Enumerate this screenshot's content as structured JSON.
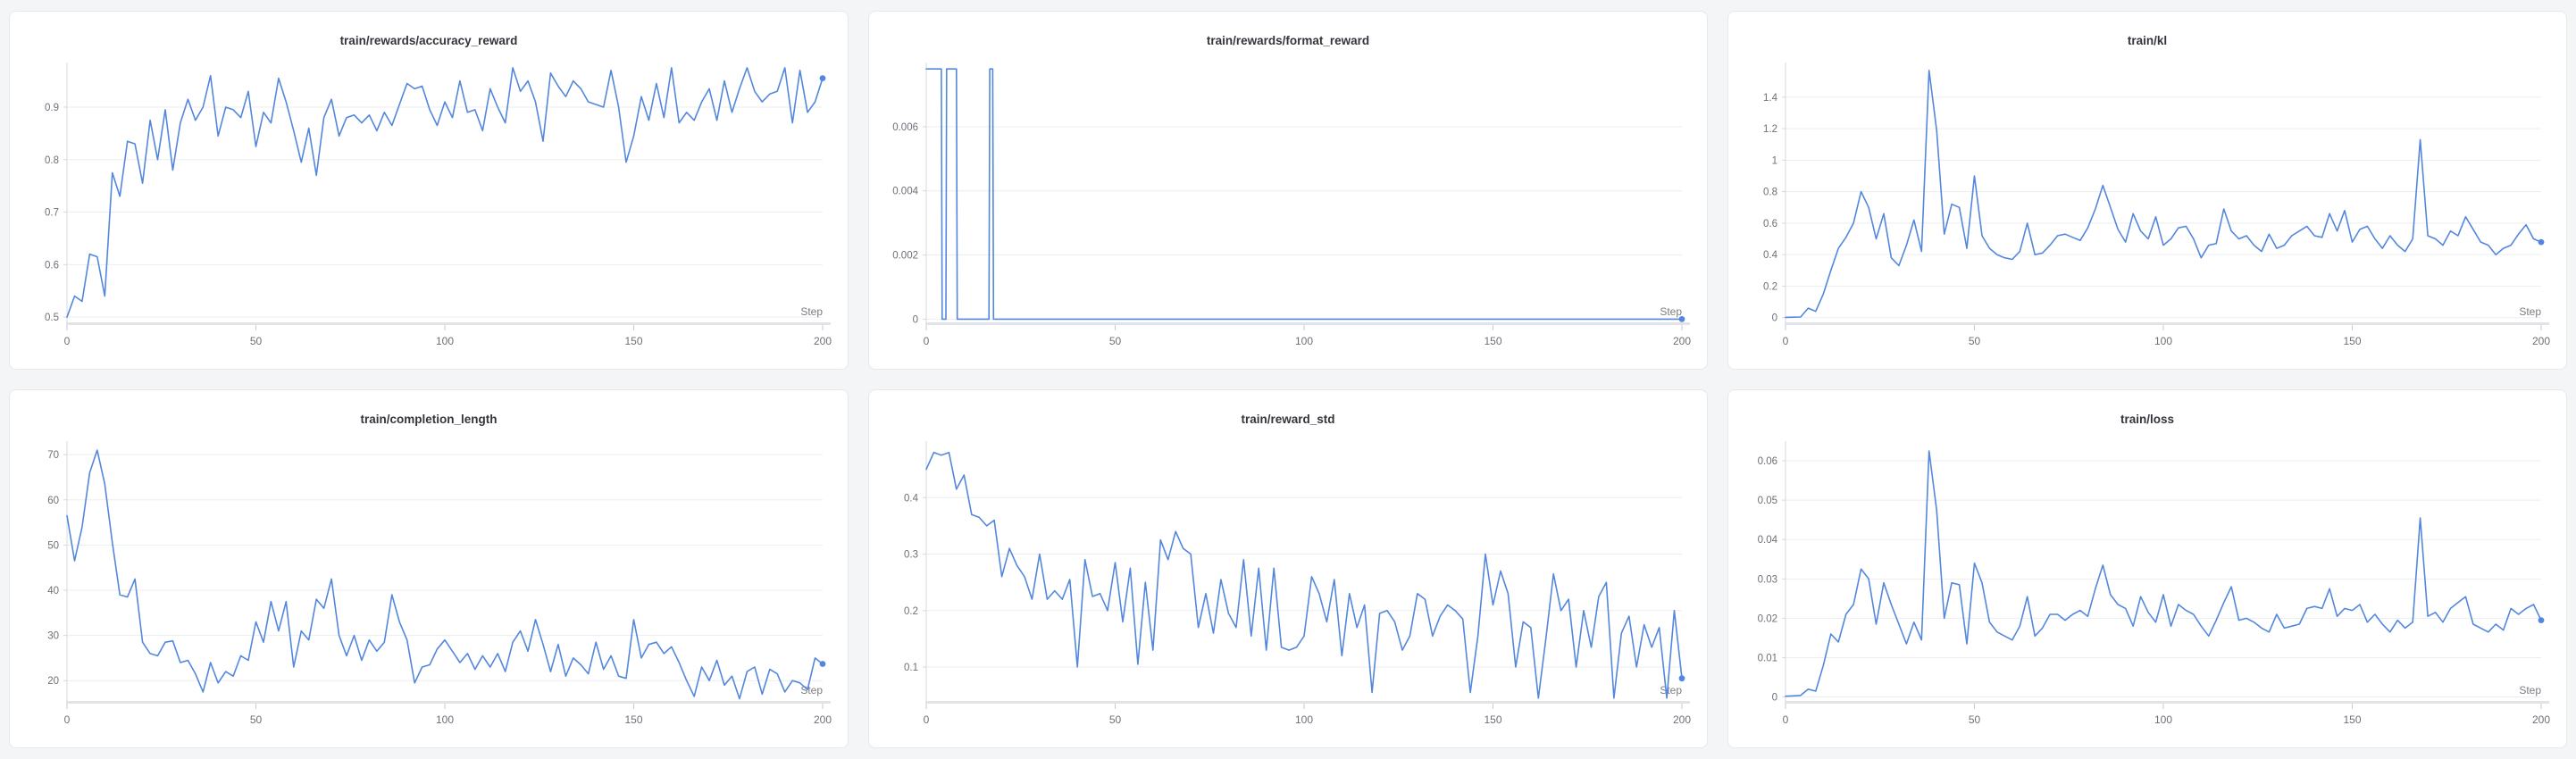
{
  "page": {
    "background": "#f4f5f6",
    "panel_background": "#ffffff",
    "panel_border": "#e7e8ea"
  },
  "theme": {
    "line_color": "#5387dd",
    "grid_color": "#ecedef",
    "axis_color": "#d7d8db",
    "axis_band_color": "#e2e3e6",
    "tick_color": "#c9cacd",
    "tick_label_color": "#6e6f77",
    "step_label_color": "#7c7d84",
    "title_color": "#34353c"
  },
  "chart_data": [
    {
      "type": "line",
      "title": "train/rewards/accuracy_reward",
      "xlabel": "Step",
      "x_start": 0,
      "x_step": 2,
      "xlim": [
        0,
        200
      ],
      "ylim": [
        0.49,
        0.985
      ],
      "x_ticks": [
        0,
        50,
        100,
        150,
        200
      ],
      "y_ticks": [
        0.5,
        0.6,
        0.7,
        0.8,
        0.9
      ],
      "y_tick_labels": [
        "0.5",
        "0.6",
        "0.7",
        "0.8",
        "0.9"
      ],
      "grid": "horizontal",
      "legend": "none",
      "end_dot": true,
      "y": [
        0.5,
        0.54,
        0.53,
        0.62,
        0.615,
        0.54,
        0.775,
        0.73,
        0.835,
        0.83,
        0.755,
        0.875,
        0.8,
        0.895,
        0.78,
        0.87,
        0.915,
        0.875,
        0.9,
        0.96,
        0.845,
        0.9,
        0.895,
        0.88,
        0.93,
        0.825,
        0.89,
        0.87,
        0.955,
        0.91,
        0.855,
        0.795,
        0.86,
        0.77,
        0.88,
        0.915,
        0.845,
        0.88,
        0.885,
        0.87,
        0.885,
        0.855,
        0.89,
        0.865,
        0.905,
        0.945,
        0.935,
        0.94,
        0.895,
        0.865,
        0.91,
        0.88,
        0.95,
        0.89,
        0.895,
        0.855,
        0.935,
        0.9,
        0.87,
        0.975,
        0.93,
        0.95,
        0.91,
        0.835,
        0.965,
        0.94,
        0.92,
        0.95,
        0.935,
        0.91,
        0.905,
        0.9,
        0.97,
        0.9,
        0.795,
        0.845,
        0.92,
        0.875,
        0.945,
        0.88,
        0.975,
        0.87,
        0.89,
        0.875,
        0.91,
        0.935,
        0.875,
        0.95,
        0.89,
        0.935,
        0.975,
        0.93,
        0.91,
        0.925,
        0.93,
        0.975,
        0.87,
        0.97,
        0.89,
        0.91,
        0.955
      ]
    },
    {
      "type": "line",
      "title": "train/rewards/format_reward",
      "xlabel": "Step",
      "xlim": [
        0,
        200
      ],
      "ylim": [
        -0.0001,
        0.008
      ],
      "x_ticks": [
        0,
        50,
        100,
        150,
        200
      ],
      "y_ticks": [
        0,
        0.002,
        0.004,
        0.006
      ],
      "y_tick_labels": [
        "0",
        "0.002",
        "0.004",
        "0.006"
      ],
      "grid": "horizontal",
      "legend": "none",
      "end_dot": true,
      "x": [
        0,
        4,
        4.2,
        5.2,
        5.4,
        8,
        8.2,
        16.6,
        16.8,
        17.6,
        17.8,
        200
      ],
      "y": [
        0.0078,
        0.0078,
        0,
        0,
        0.0078,
        0.0078,
        0,
        0,
        0.0078,
        0.0078,
        0,
        0
      ]
    },
    {
      "type": "line",
      "title": "train/kl",
      "xlabel": "Step",
      "x_start": 0,
      "x_step": 2,
      "xlim": [
        0,
        200
      ],
      "ylim": [
        -0.03,
        1.62
      ],
      "x_ticks": [
        0,
        50,
        100,
        150,
        200
      ],
      "y_ticks": [
        0,
        0.2,
        0.4,
        0.6,
        0.8,
        1,
        1.2,
        1.4
      ],
      "y_tick_labels": [
        "0",
        "0.2",
        "0.4",
        "0.6",
        "0.8",
        "1",
        "1.2",
        "1.4"
      ],
      "grid": "horizontal",
      "legend": "none",
      "end_dot": true,
      "y": [
        0.002,
        0.003,
        0.004,
        0.06,
        0.04,
        0.15,
        0.3,
        0.44,
        0.51,
        0.6,
        0.8,
        0.7,
        0.5,
        0.66,
        0.38,
        0.33,
        0.46,
        0.62,
        0.42,
        1.57,
        1.19,
        0.53,
        0.72,
        0.7,
        0.44,
        0.9,
        0.52,
        0.44,
        0.4,
        0.38,
        0.37,
        0.42,
        0.6,
        0.4,
        0.41,
        0.46,
        0.52,
        0.53,
        0.51,
        0.49,
        0.57,
        0.69,
        0.84,
        0.7,
        0.56,
        0.48,
        0.66,
        0.55,
        0.5,
        0.64,
        0.46,
        0.5,
        0.57,
        0.58,
        0.5,
        0.38,
        0.46,
        0.47,
        0.69,
        0.55,
        0.5,
        0.52,
        0.46,
        0.42,
        0.53,
        0.44,
        0.46,
        0.52,
        0.55,
        0.58,
        0.52,
        0.51,
        0.66,
        0.55,
        0.68,
        0.48,
        0.56,
        0.58,
        0.5,
        0.44,
        0.52,
        0.46,
        0.42,
        0.5,
        1.13,
        0.52,
        0.5,
        0.46,
        0.55,
        0.52,
        0.64,
        0.56,
        0.48,
        0.46,
        0.4,
        0.44,
        0.46,
        0.53,
        0.59,
        0.5,
        0.48
      ]
    },
    {
      "type": "line",
      "title": "train/completion_length",
      "xlabel": "Step",
      "x_start": 0,
      "x_step": 2,
      "xlim": [
        0,
        200
      ],
      "ylim": [
        15.5,
        73
      ],
      "x_ticks": [
        0,
        50,
        100,
        150,
        200
      ],
      "y_ticks": [
        20,
        30,
        40,
        50,
        60,
        70
      ],
      "y_tick_labels": [
        "20",
        "30",
        "40",
        "50",
        "60",
        "70"
      ],
      "grid": "horizontal",
      "legend": "none",
      "end_dot": true,
      "y": [
        56.5,
        46.5,
        54,
        66,
        71,
        63.5,
        50.5,
        39,
        38.5,
        42.5,
        28.5,
        26,
        25.5,
        28.5,
        28.8,
        24,
        24.5,
        21.5,
        17.5,
        24,
        19.5,
        22,
        21,
        25.5,
        24.5,
        33,
        28.5,
        37.5,
        31,
        37.5,
        23,
        31,
        29,
        38,
        36,
        42.5,
        30,
        25.5,
        30,
        24.5,
        29,
        26.5,
        28.5,
        39,
        33,
        29,
        19.5,
        23,
        23.5,
        27,
        29,
        26.5,
        24,
        26,
        22.5,
        25.5,
        23,
        26,
        22,
        28.5,
        31,
        26.5,
        33.5,
        28,
        22,
        28,
        21,
        25,
        23.5,
        21.5,
        28.5,
        22.5,
        25.5,
        21,
        20.5,
        33.5,
        25,
        28,
        28.5,
        26,
        27.5,
        24,
        20,
        16.5,
        23,
        20,
        24.5,
        19,
        21,
        16,
        22,
        23,
        17,
        22.5,
        21.5,
        17.5,
        20,
        19.5,
        18,
        25,
        23.7
      ]
    },
    {
      "type": "line",
      "title": "train/reward_std",
      "xlabel": "Step",
      "x_start": 0,
      "x_step": 2,
      "xlim": [
        0,
        200
      ],
      "ylim": [
        0.04,
        0.5
      ],
      "x_ticks": [
        0,
        50,
        100,
        150,
        200
      ],
      "y_ticks": [
        0.1,
        0.2,
        0.3,
        0.4
      ],
      "y_tick_labels": [
        "0.1",
        "0.2",
        "0.3",
        "0.4"
      ],
      "grid": "horizontal",
      "legend": "none",
      "end_dot": true,
      "y": [
        0.45,
        0.48,
        0.475,
        0.48,
        0.415,
        0.44,
        0.37,
        0.365,
        0.35,
        0.36,
        0.26,
        0.31,
        0.28,
        0.26,
        0.22,
        0.3,
        0.22,
        0.235,
        0.22,
        0.255,
        0.1,
        0.29,
        0.225,
        0.23,
        0.2,
        0.285,
        0.18,
        0.275,
        0.105,
        0.25,
        0.13,
        0.325,
        0.29,
        0.34,
        0.31,
        0.3,
        0.17,
        0.23,
        0.16,
        0.255,
        0.195,
        0.17,
        0.29,
        0.155,
        0.275,
        0.13,
        0.275,
        0.135,
        0.13,
        0.135,
        0.155,
        0.26,
        0.23,
        0.18,
        0.255,
        0.12,
        0.23,
        0.17,
        0.21,
        0.055,
        0.195,
        0.2,
        0.18,
        0.13,
        0.155,
        0.23,
        0.22,
        0.155,
        0.19,
        0.21,
        0.2,
        0.185,
        0.055,
        0.155,
        0.3,
        0.21,
        0.27,
        0.23,
        0.1,
        0.18,
        0.17,
        0.045,
        0.15,
        0.265,
        0.2,
        0.22,
        0.1,
        0.2,
        0.135,
        0.225,
        0.25,
        0.045,
        0.16,
        0.19,
        0.1,
        0.175,
        0.135,
        0.17,
        0.045,
        0.2,
        0.08
      ]
    },
    {
      "type": "line",
      "title": "train/loss",
      "xlabel": "Step",
      "x_start": 0,
      "x_step": 2,
      "xlim": [
        0,
        200
      ],
      "ylim": [
        -0.001,
        0.065
      ],
      "x_ticks": [
        0,
        50,
        100,
        150,
        200
      ],
      "y_ticks": [
        0,
        0.01,
        0.02,
        0.03,
        0.04,
        0.05,
        0.06
      ],
      "y_tick_labels": [
        "0",
        "0.01",
        "0.02",
        "0.03",
        "0.04",
        "0.05",
        "0.06"
      ],
      "grid": "horizontal",
      "legend": "none",
      "end_dot": true,
      "y": [
        0.0002,
        0.0003,
        0.0004,
        0.002,
        0.0015,
        0.008,
        0.016,
        0.014,
        0.021,
        0.0235,
        0.0325,
        0.03,
        0.0185,
        0.029,
        0.0235,
        0.0185,
        0.0135,
        0.019,
        0.0145,
        0.0625,
        0.0475,
        0.02,
        0.029,
        0.0285,
        0.0135,
        0.034,
        0.029,
        0.019,
        0.0165,
        0.0155,
        0.0145,
        0.018,
        0.0255,
        0.0155,
        0.0175,
        0.021,
        0.021,
        0.0195,
        0.021,
        0.022,
        0.0205,
        0.0275,
        0.0335,
        0.026,
        0.0235,
        0.0225,
        0.018,
        0.0255,
        0.0215,
        0.019,
        0.026,
        0.018,
        0.0235,
        0.022,
        0.021,
        0.018,
        0.0155,
        0.0195,
        0.024,
        0.028,
        0.0195,
        0.02,
        0.019,
        0.0175,
        0.0165,
        0.021,
        0.0175,
        0.018,
        0.0185,
        0.0225,
        0.023,
        0.0225,
        0.0275,
        0.0205,
        0.0225,
        0.022,
        0.0235,
        0.019,
        0.021,
        0.0185,
        0.0165,
        0.0195,
        0.0175,
        0.019,
        0.0455,
        0.0205,
        0.0215,
        0.019,
        0.0225,
        0.024,
        0.0255,
        0.0185,
        0.0175,
        0.0165,
        0.0185,
        0.017,
        0.0225,
        0.021,
        0.0225,
        0.0235,
        0.0195
      ]
    }
  ]
}
